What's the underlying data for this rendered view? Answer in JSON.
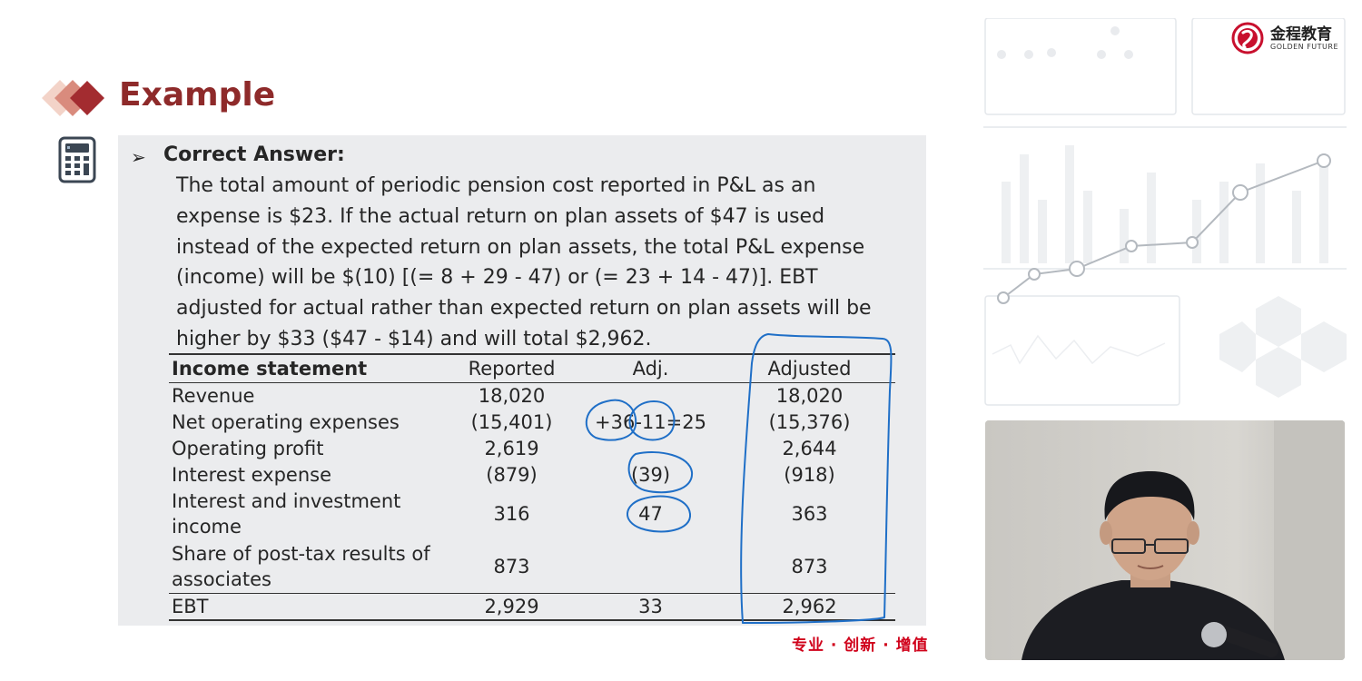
{
  "slide": {
    "title": "Example",
    "bullet_marker": "➢",
    "heading": "Correct Answer:",
    "body_lines": [
      "The total amount of periodic pension cost reported in P&L as an",
      "expense is $23. If the actual return on plan assets of $47 is used",
      "instead of the expected return on plan assets, the total P&L expense",
      "(income) will be $(10) [(= 8 + 29 - 47) or (= 23 + 14 - 47)]. EBT",
      "adjusted for actual rather than expected return on plan assets will be",
      "higher by $33 ($47 - $14) and will total $2,962."
    ],
    "slogan": "专业 · 创新 · 增值"
  },
  "table": {
    "headers": [
      "Income statement",
      "Reported",
      "Adj.",
      "Adjusted"
    ],
    "rows": [
      {
        "label": "Revenue",
        "reported": "18,020",
        "adj": "",
        "adjusted": "18,020"
      },
      {
        "label": "Net operating expenses",
        "reported": "(15,401)",
        "adj": "+36-11=25",
        "adjusted": "(15,376)"
      },
      {
        "label": "Operating profit",
        "reported": "2,619",
        "adj": "",
        "adjusted": "2,644"
      },
      {
        "label": "Interest expense",
        "reported": "(879)",
        "adj": "(39)",
        "adjusted": "(918)"
      },
      {
        "label": "Interest and investment income",
        "reported": "316",
        "adj": "47",
        "adjusted": "363"
      },
      {
        "label": "Share of post-tax results of associates",
        "reported": "873",
        "adj": "",
        "adjusted": "873"
      },
      {
        "label": "EBT",
        "reported": "2,929",
        "adj": "33",
        "adjusted": "2,962"
      }
    ]
  },
  "logo": {
    "name_cn": "金程教育",
    "name_en": "GOLDEN FUTURE"
  },
  "colors": {
    "title": "#8e2a2a",
    "panel_bg": "#ebecee",
    "ink": "#1f6fc7",
    "slogan": "#d0021b"
  },
  "icons": [
    "diamond-decoration-icon",
    "calculator-icon",
    "logo-emblem-icon"
  ]
}
